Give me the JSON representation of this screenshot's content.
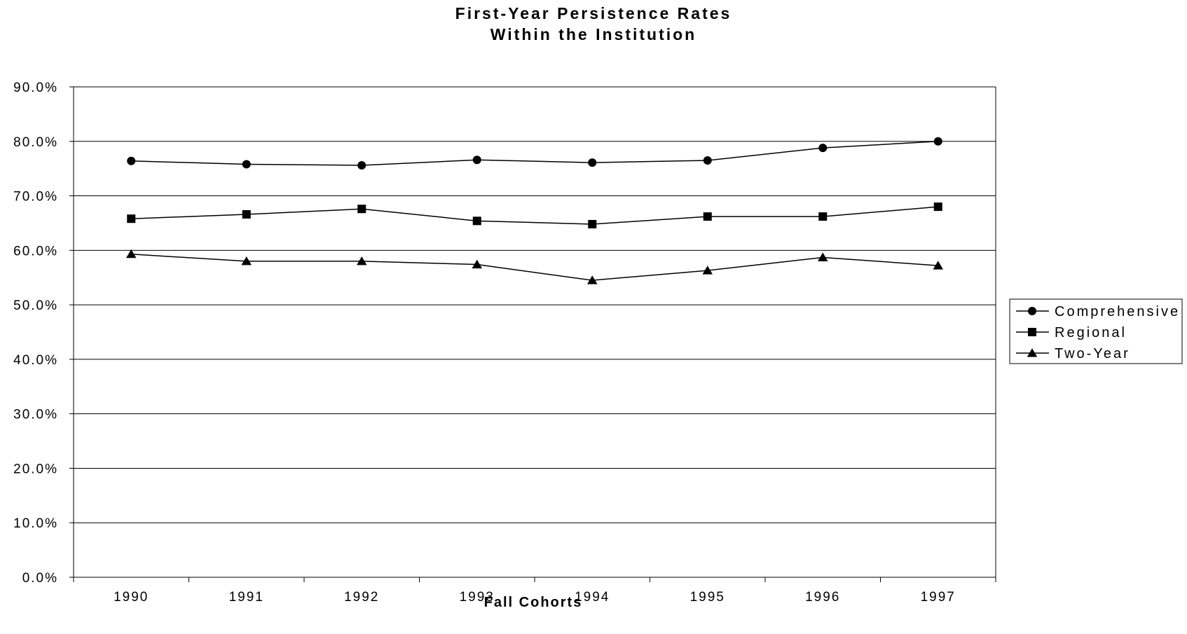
{
  "chart_data": {
    "type": "line",
    "title": "First-Year Persistence Rates",
    "subtitle": "Within the Institution",
    "xlabel": "Fall Cohorts",
    "ylabel": "",
    "categories": [
      "1990",
      "1991",
      "1992",
      "1993",
      "1994",
      "1995",
      "1996",
      "1997"
    ],
    "ylim": [
      0,
      90
    ],
    "yticks": [
      0,
      10,
      20,
      30,
      40,
      50,
      60,
      70,
      80,
      90
    ],
    "ytick_labels": [
      "0.0%",
      "10.0%",
      "20.0%",
      "30.0%",
      "40.0%",
      "50.0%",
      "60.0%",
      "70.0%",
      "80.0%",
      "90.0%"
    ],
    "grid": true,
    "legend_position": "right",
    "series": [
      {
        "name": "Comprehensive",
        "marker": "circle",
        "color": "#000000",
        "values": [
          76.4,
          75.8,
          75.6,
          76.6,
          76.1,
          76.5,
          78.8,
          80.0
        ]
      },
      {
        "name": "Regional",
        "marker": "square",
        "color": "#000000",
        "values": [
          65.8,
          66.6,
          67.6,
          65.4,
          64.8,
          66.2,
          66.2,
          68.0
        ]
      },
      {
        "name": "Two-Year",
        "marker": "triangle",
        "color": "#000000",
        "values": [
          59.3,
          58.0,
          58.0,
          57.4,
          54.5,
          56.3,
          58.7,
          57.2
        ]
      }
    ]
  }
}
